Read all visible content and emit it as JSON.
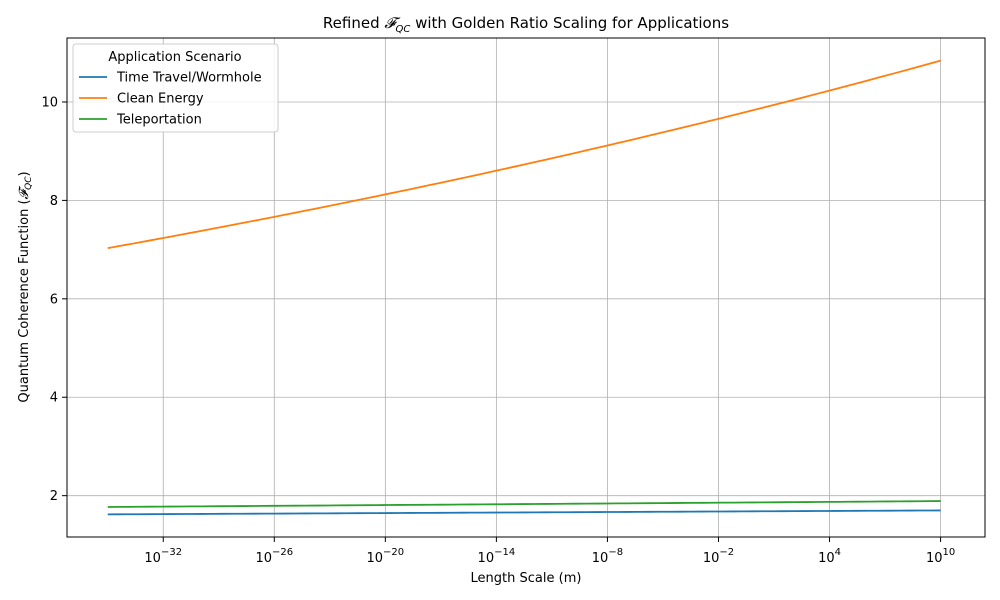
{
  "chart_data": {
    "type": "line",
    "title_prefix": "Refined ",
    "title_symbol": "𝓕",
    "title_subscript": "QC",
    "title_suffix": " with Golden Ratio Scaling for Applications",
    "xlabel": "Length Scale (m)",
    "ylabel_prefix": "Quantum Coherence Function (",
    "ylabel_symbol": "𝓕",
    "ylabel_subscript": "QC",
    "ylabel_suffix": ")",
    "x_scale": "log",
    "x": [
      1e-35,
      10000000000.0
    ],
    "xlim_log10": [
      -37.2,
      12.4
    ],
    "ylim": [
      1.16,
      11.3
    ],
    "x_ticks": [
      {
        "exp": -32,
        "base": "10",
        "power": "−32"
      },
      {
        "exp": -26,
        "base": "10",
        "power": "−26"
      },
      {
        "exp": -20,
        "base": "10",
        "power": "−20"
      },
      {
        "exp": -14,
        "base": "10",
        "power": "−14"
      },
      {
        "exp": -8,
        "base": "10",
        "power": "−8"
      },
      {
        "exp": -2,
        "base": "10",
        "power": "−2"
      },
      {
        "exp": 4,
        "base": "10",
        "power": "4"
      },
      {
        "exp": 10,
        "base": "10",
        "power": "10"
      }
    ],
    "y_ticks": [
      {
        "value": 2,
        "label": "2"
      },
      {
        "value": 4,
        "label": "4"
      },
      {
        "value": 6,
        "label": "6"
      },
      {
        "value": 8,
        "label": "8"
      },
      {
        "value": 10,
        "label": "10"
      }
    ],
    "grid": true,
    "legend": {
      "title": "Application Scenario",
      "placement": "top-left"
    },
    "series": [
      {
        "name": "Time Travel/Wormhole",
        "color": "#1f77b4",
        "y_start": 1.62,
        "y_end": 1.7,
        "growth": "exponential"
      },
      {
        "name": "Clean Energy",
        "color": "#ff7f0e",
        "y_start": 7.03,
        "y_end": 10.84,
        "growth": "exponential"
      },
      {
        "name": "Teleportation",
        "color": "#2ca02c",
        "y_start": 1.77,
        "y_end": 1.89,
        "growth": "exponential"
      }
    ]
  }
}
